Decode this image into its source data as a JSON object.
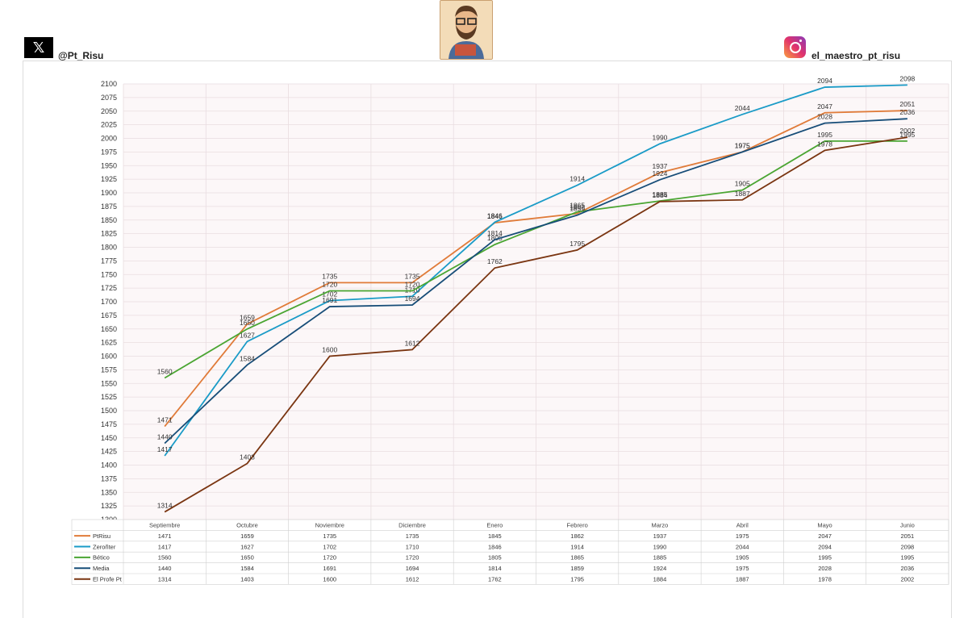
{
  "header": {
    "x_icon": "x-logo-icon",
    "x_glyph": "𝕏",
    "twitter_handle": "@Pt_Risu",
    "instagram_icon": "instagram-icon",
    "instagram_handle": "el_maestro_pt_risu"
  },
  "chart_data": {
    "type": "line",
    "title": "",
    "xlabel": "",
    "ylabel": "",
    "ylim": [
      1300,
      2100
    ],
    "ystep": 25,
    "grid": true,
    "legend": "bottom-table",
    "categories": [
      "Septiembre",
      "Octubre",
      "Noviembre",
      "Diciembre",
      "Enero",
      "Febrero",
      "Marzo",
      "Abril",
      "Mayo",
      "Junio"
    ],
    "series": [
      {
        "name": "PtRisu",
        "color": "#e07b39",
        "values": [
          1471,
          1659,
          1735,
          1735,
          1845,
          1862,
          1937,
          1975,
          2047,
          2051
        ]
      },
      {
        "name": "Zeroñter",
        "color": "#1a9bc7",
        "values": [
          1417,
          1627,
          1702,
          1710,
          1846,
          1914,
          1990,
          2044,
          2094,
          2098
        ]
      },
      {
        "name": "Bético",
        "color": "#4aa532",
        "values": [
          1560,
          1650,
          1720,
          1720,
          1805,
          1865,
          1885,
          1905,
          1995,
          1995
        ]
      },
      {
        "name": "Media",
        "color": "#174d78",
        "values": [
          1440,
          1584,
          1691,
          1694,
          1814,
          1859,
          1924,
          1975,
          2028,
          2036
        ]
      },
      {
        "name": "El Profe Pt",
        "color": "#7a3511",
        "values": [
          1314,
          1403,
          1600,
          1612,
          1762,
          1795,
          1884,
          1887,
          1978,
          2002
        ]
      }
    ]
  }
}
